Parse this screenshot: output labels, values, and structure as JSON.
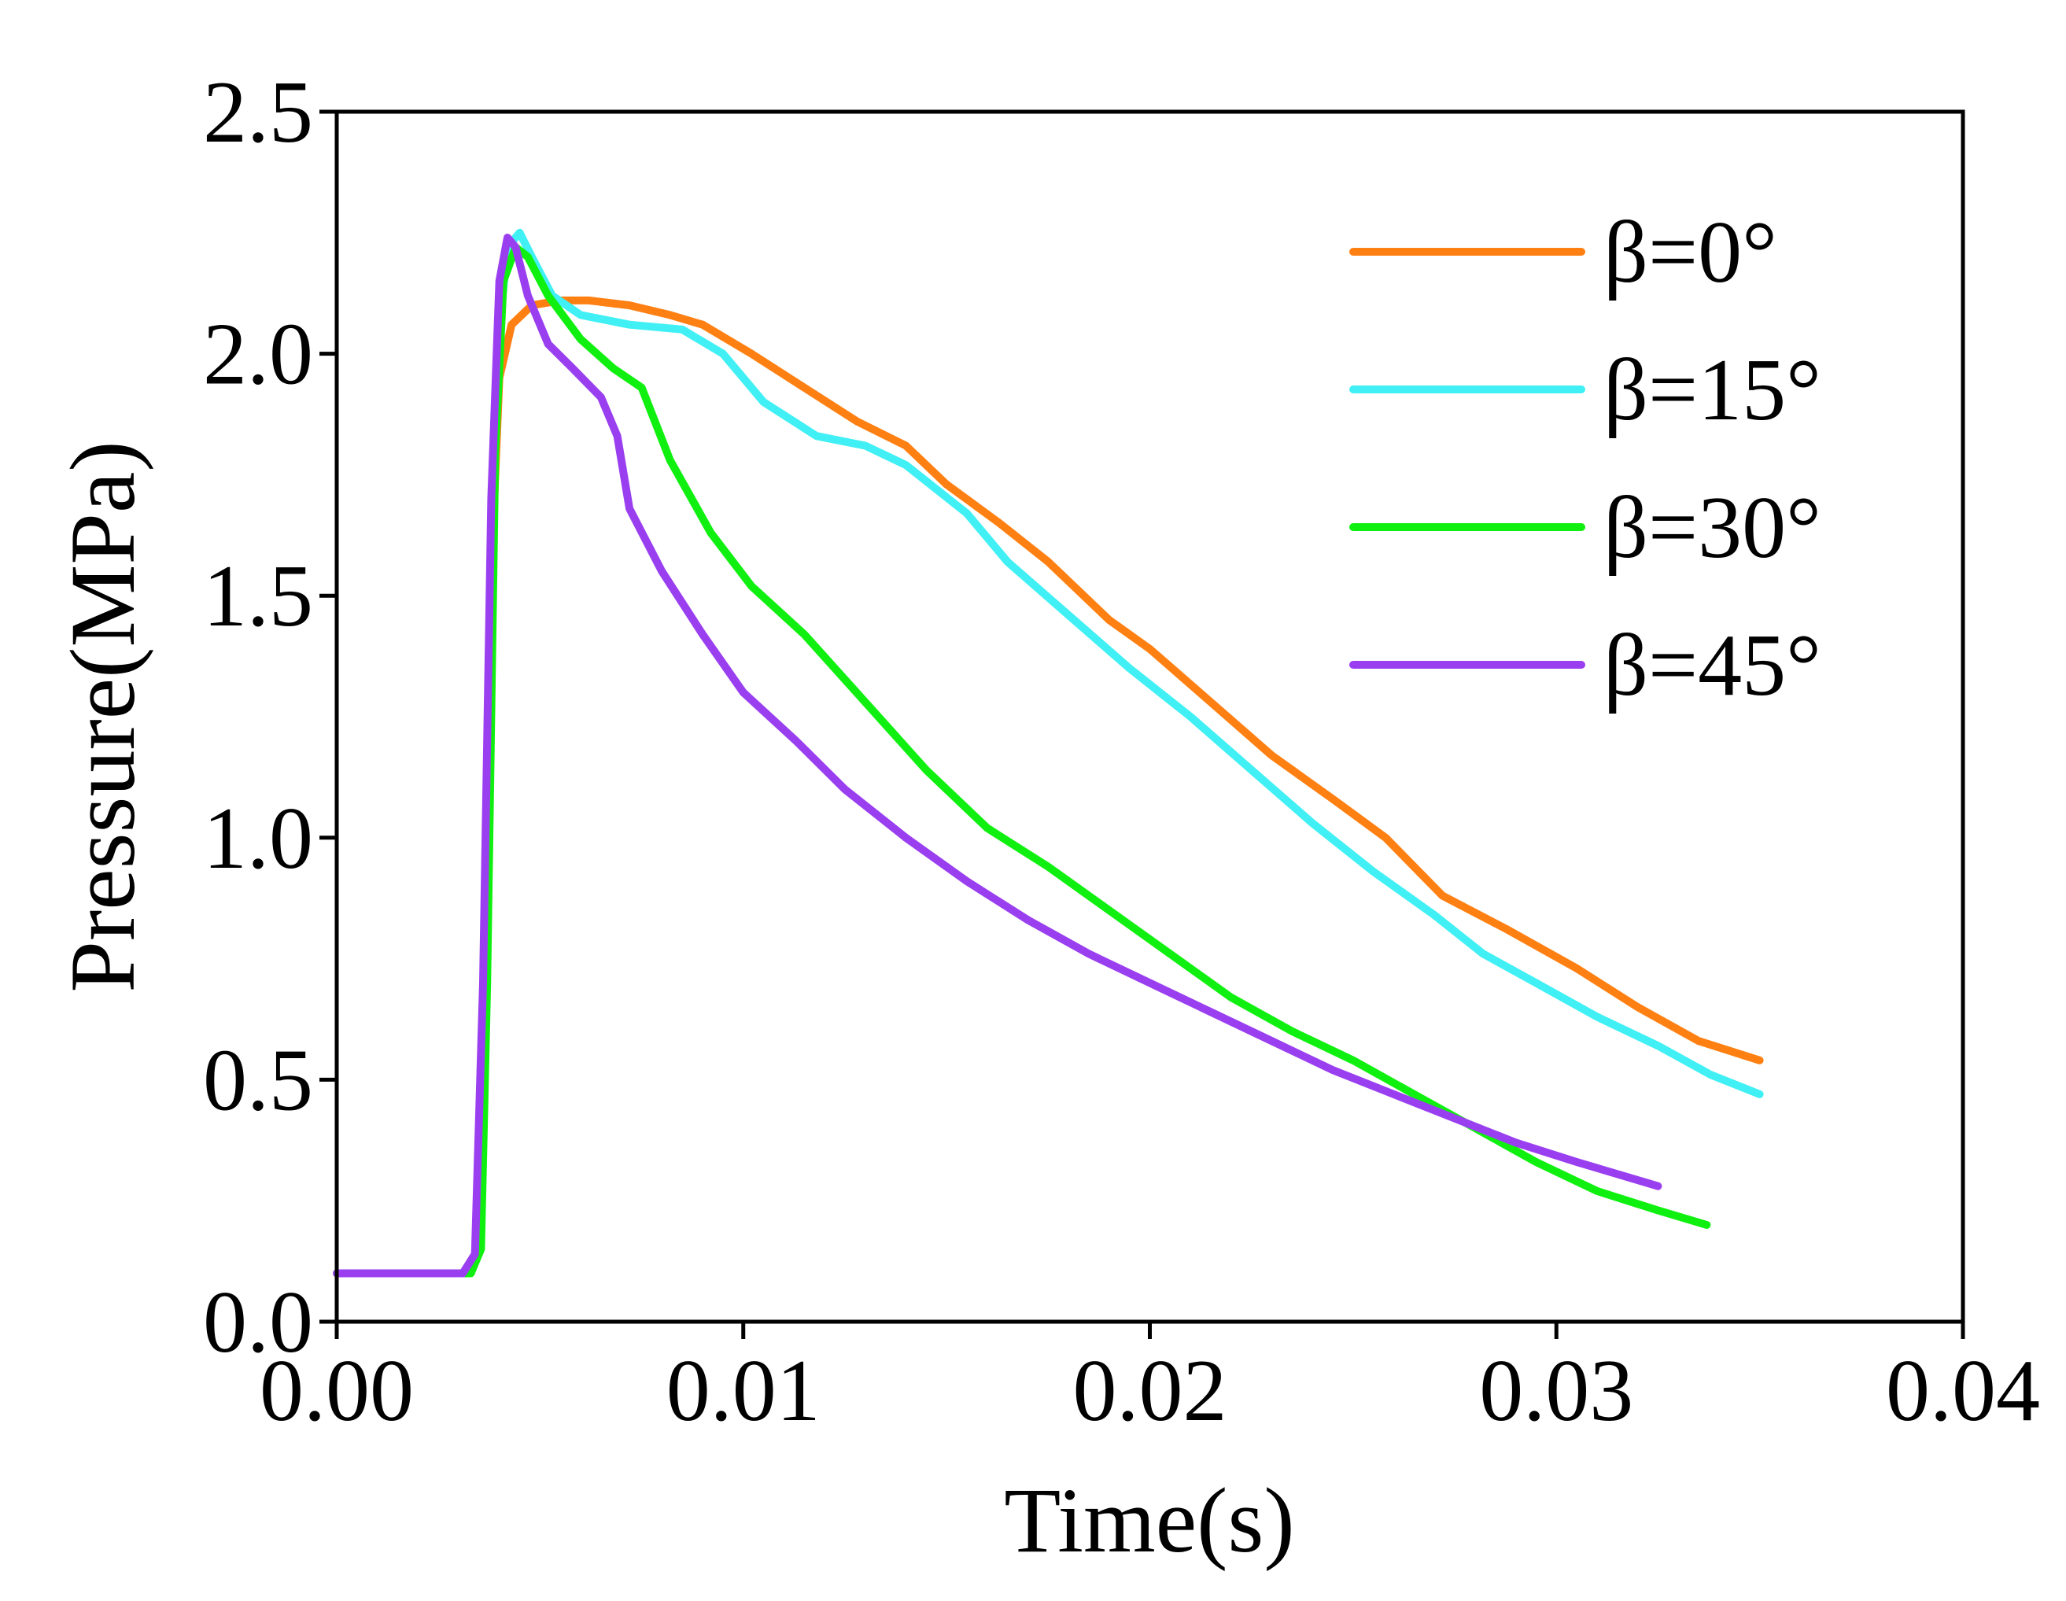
{
  "chart_data": {
    "type": "line",
    "title": "",
    "xlabel": "Time(s)",
    "ylabel": "Pressure(MPa)",
    "xlim": [
      0,
      0.04
    ],
    "ylim": [
      0,
      2.5
    ],
    "xticks": [
      0,
      0.01,
      0.02,
      0.03,
      0.04
    ],
    "xtick_labels": [
      "0.00",
      "0.01",
      "0.02",
      "0.03",
      "0.04"
    ],
    "yticks": [
      0,
      0.5,
      1.0,
      1.5,
      2.0,
      2.5
    ],
    "ytick_labels": [
      "0.0",
      "0.5",
      "1.0",
      "1.5",
      "2.0",
      "2.5"
    ],
    "grid": false,
    "legend_position": "top-right",
    "series": [
      {
        "name": "β=0°",
        "color": "#ff8012",
        "points": [
          [
            0,
            0.1
          ],
          [
            0.0032,
            0.1
          ],
          [
            0.00345,
            0.14
          ],
          [
            0.0036,
            0.55
          ],
          [
            0.0038,
            1.55
          ],
          [
            0.004,
            1.95
          ],
          [
            0.0043,
            2.06
          ],
          [
            0.0048,
            2.1
          ],
          [
            0.0055,
            2.11
          ],
          [
            0.0062,
            2.11
          ],
          [
            0.0072,
            2.1
          ],
          [
            0.0082,
            2.08
          ],
          [
            0.009,
            2.06
          ],
          [
            0.0102,
            2.0
          ],
          [
            0.0115,
            1.93
          ],
          [
            0.0128,
            1.86
          ],
          [
            0.014,
            1.81
          ],
          [
            0.015,
            1.73
          ],
          [
            0.0163,
            1.65
          ],
          [
            0.0175,
            1.57
          ],
          [
            0.019,
            1.45
          ],
          [
            0.02,
            1.39
          ],
          [
            0.0215,
            1.28
          ],
          [
            0.023,
            1.17
          ],
          [
            0.0245,
            1.08
          ],
          [
            0.0258,
            1.0
          ],
          [
            0.0272,
            0.88
          ],
          [
            0.0288,
            0.81
          ],
          [
            0.0305,
            0.73
          ],
          [
            0.032,
            0.65
          ],
          [
            0.0335,
            0.58
          ],
          [
            0.035,
            0.54
          ]
        ]
      },
      {
        "name": "β=15°",
        "color": "#40f0f4",
        "points": [
          [
            0,
            0.1
          ],
          [
            0.0032,
            0.1
          ],
          [
            0.00345,
            0.13
          ],
          [
            0.0036,
            0.6
          ],
          [
            0.0038,
            1.6
          ],
          [
            0.004,
            2.05
          ],
          [
            0.0042,
            2.22
          ],
          [
            0.0045,
            2.25
          ],
          [
            0.0048,
            2.2
          ],
          [
            0.0053,
            2.12
          ],
          [
            0.006,
            2.08
          ],
          [
            0.0072,
            2.06
          ],
          [
            0.0085,
            2.05
          ],
          [
            0.0095,
            2.0
          ],
          [
            0.0105,
            1.9
          ],
          [
            0.0118,
            1.83
          ],
          [
            0.013,
            1.81
          ],
          [
            0.014,
            1.77
          ],
          [
            0.0155,
            1.67
          ],
          [
            0.0165,
            1.57
          ],
          [
            0.018,
            1.46
          ],
          [
            0.0195,
            1.35
          ],
          [
            0.021,
            1.25
          ],
          [
            0.0225,
            1.14
          ],
          [
            0.024,
            1.03
          ],
          [
            0.0255,
            0.93
          ],
          [
            0.027,
            0.84
          ],
          [
            0.0282,
            0.76
          ],
          [
            0.0295,
            0.7
          ],
          [
            0.031,
            0.63
          ],
          [
            0.0325,
            0.57
          ],
          [
            0.0338,
            0.51
          ],
          [
            0.035,
            0.47
          ]
        ]
      },
      {
        "name": "β=30°",
        "color": "#10f010",
        "points": [
          [
            0,
            0.1
          ],
          [
            0.0033,
            0.1
          ],
          [
            0.00355,
            0.15
          ],
          [
            0.0037,
            0.7
          ],
          [
            0.0039,
            1.8
          ],
          [
            0.0041,
            2.15
          ],
          [
            0.0044,
            2.22
          ],
          [
            0.0047,
            2.2
          ],
          [
            0.0052,
            2.12
          ],
          [
            0.006,
            2.03
          ],
          [
            0.0068,
            1.97
          ],
          [
            0.0075,
            1.93
          ],
          [
            0.0082,
            1.78
          ],
          [
            0.0092,
            1.63
          ],
          [
            0.0102,
            1.52
          ],
          [
            0.0115,
            1.42
          ],
          [
            0.013,
            1.28
          ],
          [
            0.0145,
            1.14
          ],
          [
            0.016,
            1.02
          ],
          [
            0.0175,
            0.94
          ],
          [
            0.019,
            0.85
          ],
          [
            0.0205,
            0.76
          ],
          [
            0.022,
            0.67
          ],
          [
            0.0235,
            0.6
          ],
          [
            0.025,
            0.54
          ],
          [
            0.0265,
            0.47
          ],
          [
            0.028,
            0.4
          ],
          [
            0.0295,
            0.33
          ],
          [
            0.031,
            0.27
          ],
          [
            0.0325,
            0.23
          ],
          [
            0.0337,
            0.2
          ]
        ]
      },
      {
        "name": "β=45°",
        "color": "#9a3ff0",
        "points": [
          [
            0,
            0.1
          ],
          [
            0.0031,
            0.1
          ],
          [
            0.0034,
            0.14
          ],
          [
            0.0036,
            0.7
          ],
          [
            0.0038,
            1.7
          ],
          [
            0.004,
            2.15
          ],
          [
            0.0042,
            2.24
          ],
          [
            0.0044,
            2.22
          ],
          [
            0.0047,
            2.12
          ],
          [
            0.0052,
            2.02
          ],
          [
            0.0058,
            1.97
          ],
          [
            0.0065,
            1.91
          ],
          [
            0.0069,
            1.83
          ],
          [
            0.0072,
            1.68
          ],
          [
            0.008,
            1.55
          ],
          [
            0.009,
            1.42
          ],
          [
            0.01,
            1.3
          ],
          [
            0.0113,
            1.2
          ],
          [
            0.0125,
            1.1
          ],
          [
            0.014,
            1.0
          ],
          [
            0.0155,
            0.91
          ],
          [
            0.017,
            0.83
          ],
          [
            0.0185,
            0.76
          ],
          [
            0.02,
            0.7
          ],
          [
            0.0215,
            0.64
          ],
          [
            0.023,
            0.58
          ],
          [
            0.0245,
            0.52
          ],
          [
            0.026,
            0.47
          ],
          [
            0.0275,
            0.42
          ],
          [
            0.029,
            0.37
          ],
          [
            0.0305,
            0.33
          ],
          [
            0.0325,
            0.28
          ]
        ]
      }
    ]
  }
}
